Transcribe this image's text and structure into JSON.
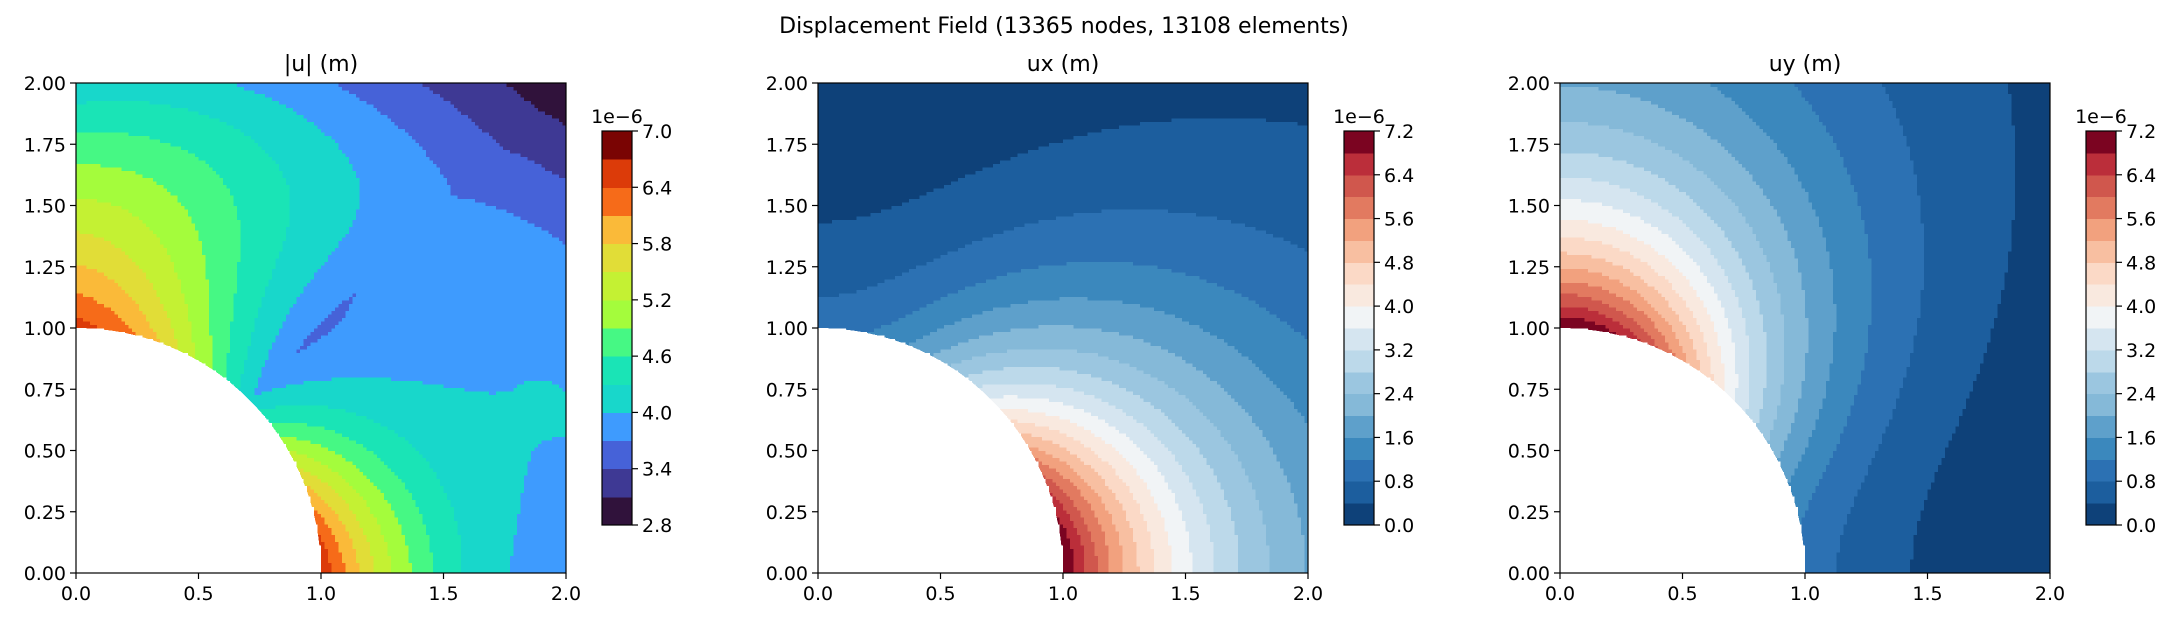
{
  "figure": {
    "suptitle": "Displacement Field (13365 nodes, 13108 elements)"
  },
  "chart_data": [
    {
      "type": "heatmap",
      "title": "|u| (m)",
      "quantity": "magnitude",
      "colormap": "turbo",
      "xlim": [
        0,
        2
      ],
      "ylim": [
        0,
        2
      ],
      "x_ticks": [
        "0.0",
        "0.5",
        "1.0",
        "1.5",
        "2.0"
      ],
      "y_ticks": [
        "0.00",
        "0.25",
        "0.50",
        "0.75",
        "1.00",
        "1.25",
        "1.50",
        "1.75",
        "2.00"
      ],
      "hole_radius": 1.0,
      "colorbar": {
        "scale_label": "1e−6",
        "min": 2.8,
        "max": 7.0,
        "levels": 14,
        "ticks": [
          "2.8",
          "3.4",
          "4.0",
          "4.6",
          "5.2",
          "5.8",
          "6.4",
          "7.0"
        ],
        "colors": [
          "#30123b",
          "#3e3994",
          "#4662d8",
          "#3e9bfe",
          "#18d7cb",
          "#1ae4b6",
          "#46f884",
          "#a4fc3c",
          "#c4f133",
          "#e1dd37",
          "#faba39",
          "#f66b19",
          "#dc3b09",
          "#7a0403"
        ]
      },
      "field_samples_1e-6": [
        {
          "x": 0.1,
          "y": 1.1,
          "value": 6.2
        },
        {
          "x": 0.2,
          "y": 1.35,
          "value": 5.5
        },
        {
          "x": 0.1,
          "y": 1.8,
          "value": 4.2
        },
        {
          "x": 0.9,
          "y": 1.6,
          "value": 3.6
        },
        {
          "x": 1.7,
          "y": 1.6,
          "value": 2.9
        },
        {
          "x": 1.6,
          "y": 0.8,
          "value": 3.6
        },
        {
          "x": 1.8,
          "y": 0.2,
          "value": 4.1
        },
        {
          "x": 1.3,
          "y": 0.2,
          "value": 5.4
        }
      ]
    },
    {
      "type": "heatmap",
      "title": "ux (m)",
      "quantity": "ux",
      "colormap": "RdBu_r",
      "xlim": [
        0,
        2
      ],
      "ylim": [
        0,
        2
      ],
      "x_ticks": [
        "0.0",
        "0.5",
        "1.0",
        "1.5",
        "2.0"
      ],
      "y_ticks": [
        "0.00",
        "0.25",
        "0.50",
        "0.75",
        "1.00",
        "1.25",
        "1.50",
        "1.75",
        "2.00"
      ],
      "hole_radius": 1.0,
      "colorbar": {
        "scale_label": "1e−6",
        "min": 0.0,
        "max": 7.2,
        "levels": 18,
        "ticks": [
          "0.0",
          "0.8",
          "1.6",
          "2.4",
          "3.2",
          "4.0",
          "4.8",
          "5.6",
          "6.4",
          "7.2"
        ],
        "colors": [
          "#0e4179",
          "#1c5e9e",
          "#2c71b3",
          "#3b88bd",
          "#5ea0cb",
          "#85b9d8",
          "#9bc6e0",
          "#bcd9ea",
          "#d5e5f0",
          "#f1f4f6",
          "#f9e9df",
          "#fbd9c6",
          "#f8bfa1",
          "#f2a17e",
          "#e27a60",
          "#d0574d",
          "#bb2e3a",
          "#7b0421"
        ]
      },
      "field_samples_1e-6": [
        {
          "x": 0.1,
          "y": 1.5,
          "value": 0.5
        },
        {
          "x": 0.4,
          "y": 1.6,
          "value": 1.3
        },
        {
          "x": 1.3,
          "y": 1.6,
          "value": 2.2
        },
        {
          "x": 1.3,
          "y": 0.95,
          "value": 2.8
        },
        {
          "x": 1.7,
          "y": 0.3,
          "value": 4.3
        },
        {
          "x": 1.3,
          "y": 0.3,
          "value": 4.8
        },
        {
          "x": 1.05,
          "y": 0.1,
          "value": 5.8
        }
      ]
    },
    {
      "type": "heatmap",
      "title": "uy (m)",
      "quantity": "uy",
      "colormap": "RdBu_r",
      "xlim": [
        0,
        2
      ],
      "ylim": [
        0,
        2
      ],
      "x_ticks": [
        "0.0",
        "0.5",
        "1.0",
        "1.5",
        "2.0"
      ],
      "y_ticks": [
        "0.00",
        "0.25",
        "0.50",
        "0.75",
        "1.00",
        "1.25",
        "1.50",
        "1.75",
        "2.00"
      ],
      "hole_radius": 1.0,
      "colorbar": {
        "scale_label": "1e−6",
        "min": 0.0,
        "max": 7.2,
        "levels": 18,
        "ticks": [
          "0.0",
          "0.8",
          "1.6",
          "2.4",
          "3.2",
          "4.0",
          "4.8",
          "5.6",
          "6.4",
          "7.2"
        ],
        "colors": [
          "#0e4179",
          "#1c5e9e",
          "#2c71b3",
          "#3b88bd",
          "#5ea0cb",
          "#85b9d8",
          "#9bc6e0",
          "#bcd9ea",
          "#d5e5f0",
          "#f1f4f6",
          "#f9e9df",
          "#fbd9c6",
          "#f8bfa1",
          "#f2a17e",
          "#e27a60",
          "#d0574d",
          "#bb2e3a",
          "#7b0421"
        ]
      },
      "field_samples_1e-6": [
        {
          "x": 0.1,
          "y": 1.1,
          "value": 5.8
        },
        {
          "x": 0.2,
          "y": 1.35,
          "value": 4.8
        },
        {
          "x": 0.3,
          "y": 1.8,
          "value": 4.3
        },
        {
          "x": 1.0,
          "y": 1.6,
          "value": 2.8
        },
        {
          "x": 1.7,
          "y": 1.6,
          "value": 2.2
        },
        {
          "x": 1.7,
          "y": 0.4,
          "value": 1.3
        },
        {
          "x": 1.7,
          "y": 0.05,
          "value": 0.5
        }
      ]
    }
  ]
}
